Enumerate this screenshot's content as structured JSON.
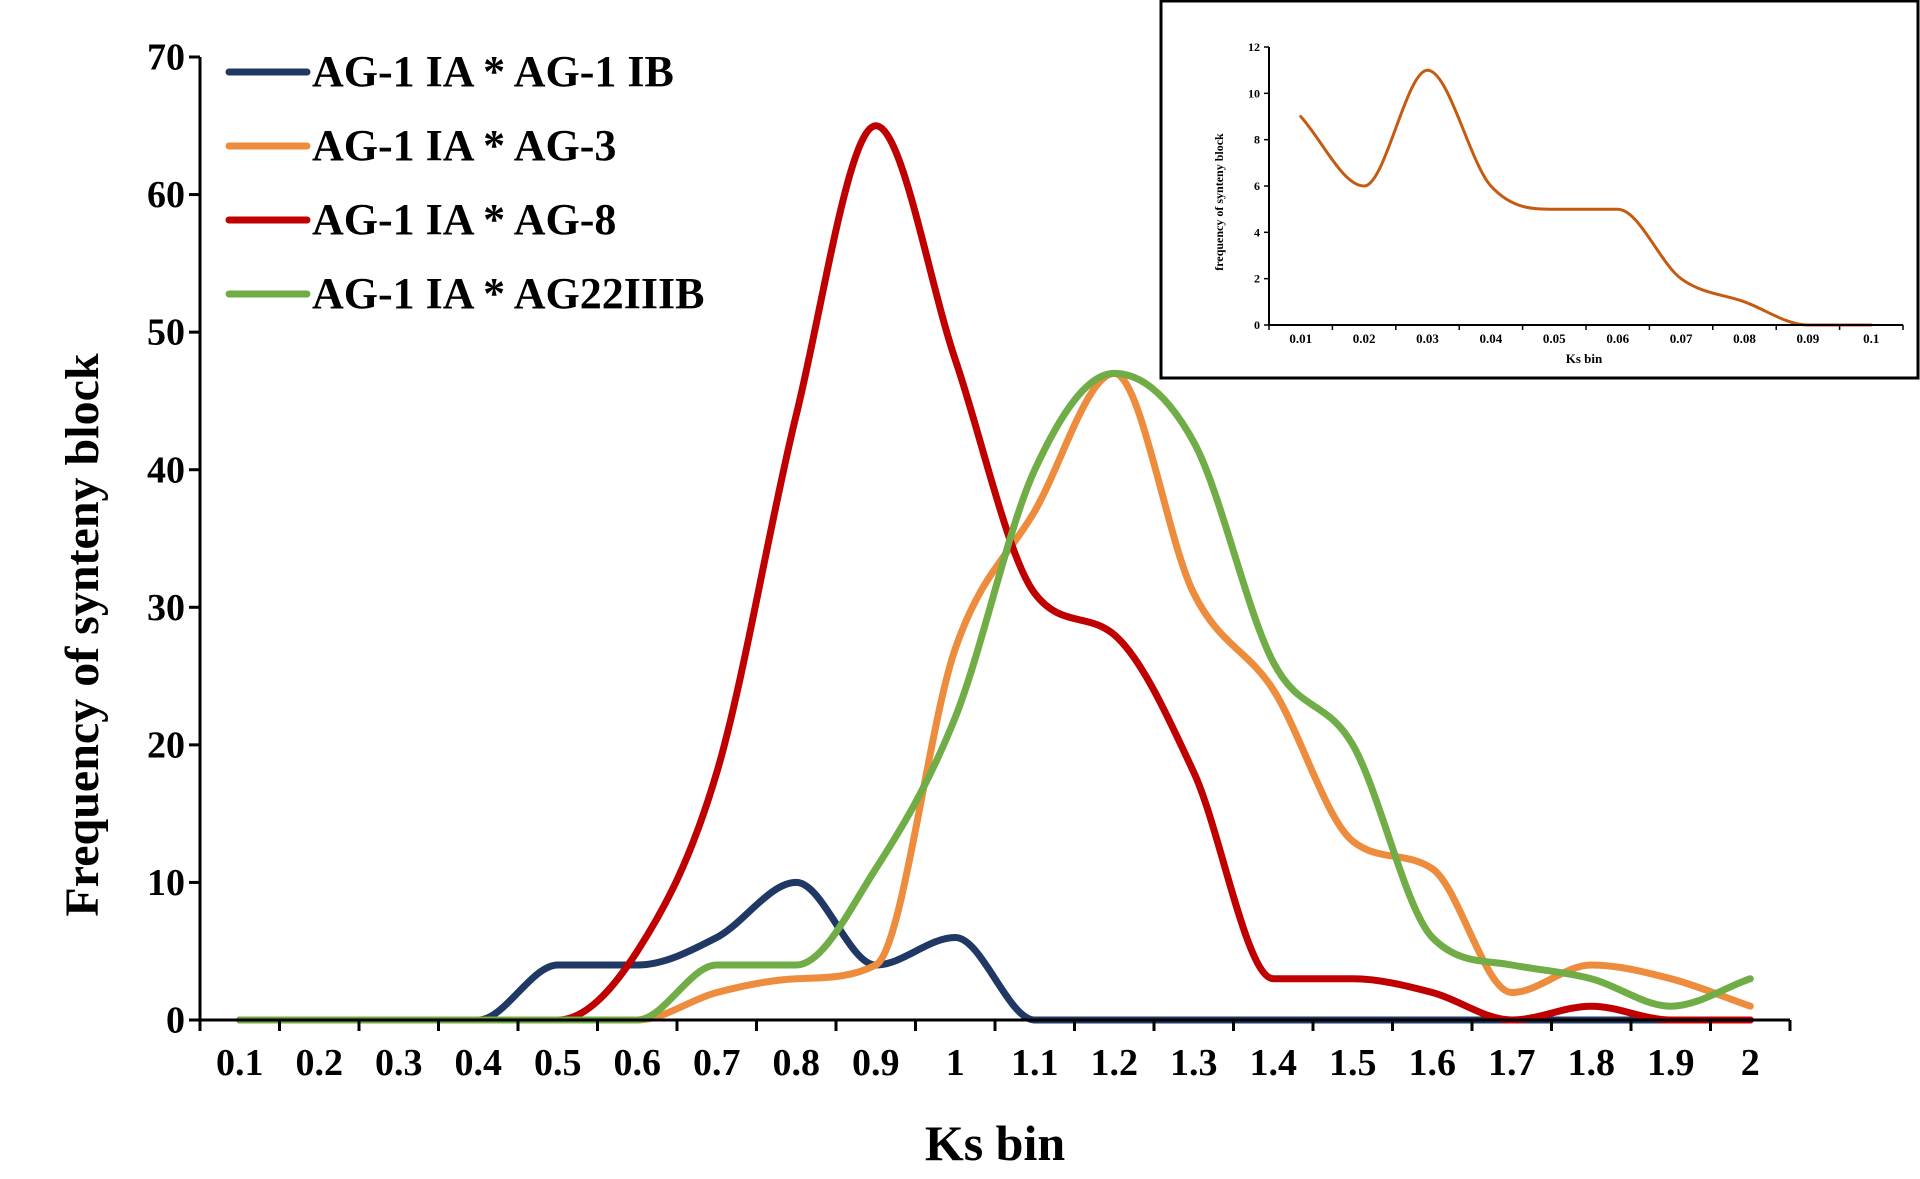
{
  "chart_data": [
    {
      "type": "line",
      "title": "",
      "xlabel": "Ks bin",
      "ylabel": "Frequency of synteny block",
      "x": [
        0.1,
        0.2,
        0.3,
        0.4,
        0.5,
        0.6,
        0.7,
        0.8,
        0.9,
        1,
        1.1,
        1.2,
        1.3,
        1.4,
        1.5,
        1.6,
        1.7,
        1.8,
        1.9,
        2
      ],
      "xticks": [
        "0.1",
        "0.2",
        "0.3",
        "0.4",
        "0.5",
        "0.6",
        "0.7",
        "0.8",
        "0.9",
        "1",
        "1.1",
        "1.2",
        "1.3",
        "1.4",
        "1.5",
        "1.6",
        "1.7",
        "1.8",
        "1.9",
        "2"
      ],
      "yticks": [
        "0",
        "10",
        "20",
        "30",
        "40",
        "50",
        "60",
        "70"
      ],
      "xlim": [
        0.05,
        2.05
      ],
      "ylim": [
        0,
        70
      ],
      "legend_position": "top-left",
      "series": [
        {
          "name": "AG-1 IA * AG-1 IB",
          "color": "#1f3864",
          "values": [
            0,
            0,
            0,
            0,
            4,
            4,
            6,
            10,
            4,
            6,
            0,
            0,
            0,
            0,
            0,
            0,
            0,
            0,
            0,
            0
          ]
        },
        {
          "name": "AG-1 IA * AG-3",
          "color": "#ed8c3c",
          "values": [
            0,
            0,
            0,
            0,
            0,
            0,
            2,
            3,
            4,
            27,
            37,
            47,
            31,
            24,
            13,
            11,
            2,
            4,
            3,
            1
          ]
        },
        {
          "name": "AG-1 IA * AG-8",
          "color": "#c00000",
          "values": [
            0,
            0,
            0,
            0,
            0,
            5,
            18,
            44,
            65,
            48,
            31,
            28,
            18,
            3,
            3,
            2,
            0,
            1,
            0,
            0
          ]
        },
        {
          "name": "AG-1 IA * AG22IIIB",
          "color": "#70ad47",
          "values": [
            0,
            0,
            0,
            0,
            0,
            0,
            4,
            4,
            11,
            22,
            40,
            47,
            42,
            26,
            20,
            6,
            4,
            3,
            1,
            3
          ]
        }
      ]
    },
    {
      "type": "line",
      "title": "",
      "xlabel": "Ks bin",
      "ylabel": "frequency of synteny block",
      "x": [
        0.01,
        0.02,
        0.03,
        0.04,
        0.05,
        0.06,
        0.07,
        0.08,
        0.09,
        0.1
      ],
      "xticks": [
        "0.01",
        "0.02",
        "0.03",
        "0.04",
        "0.05",
        "0.06",
        "0.07",
        "0.08",
        "0.09",
        "0.1"
      ],
      "yticks": [
        "0",
        "2",
        "4",
        "6",
        "8",
        "10",
        "12"
      ],
      "xlim": [
        0.005,
        0.105
      ],
      "ylim": [
        0,
        12
      ],
      "series": [
        {
          "name": "inset",
          "color": "#c55a11",
          "values": [
            9,
            6,
            11,
            6,
            5,
            5,
            2,
            1,
            0,
            0
          ]
        }
      ]
    }
  ]
}
